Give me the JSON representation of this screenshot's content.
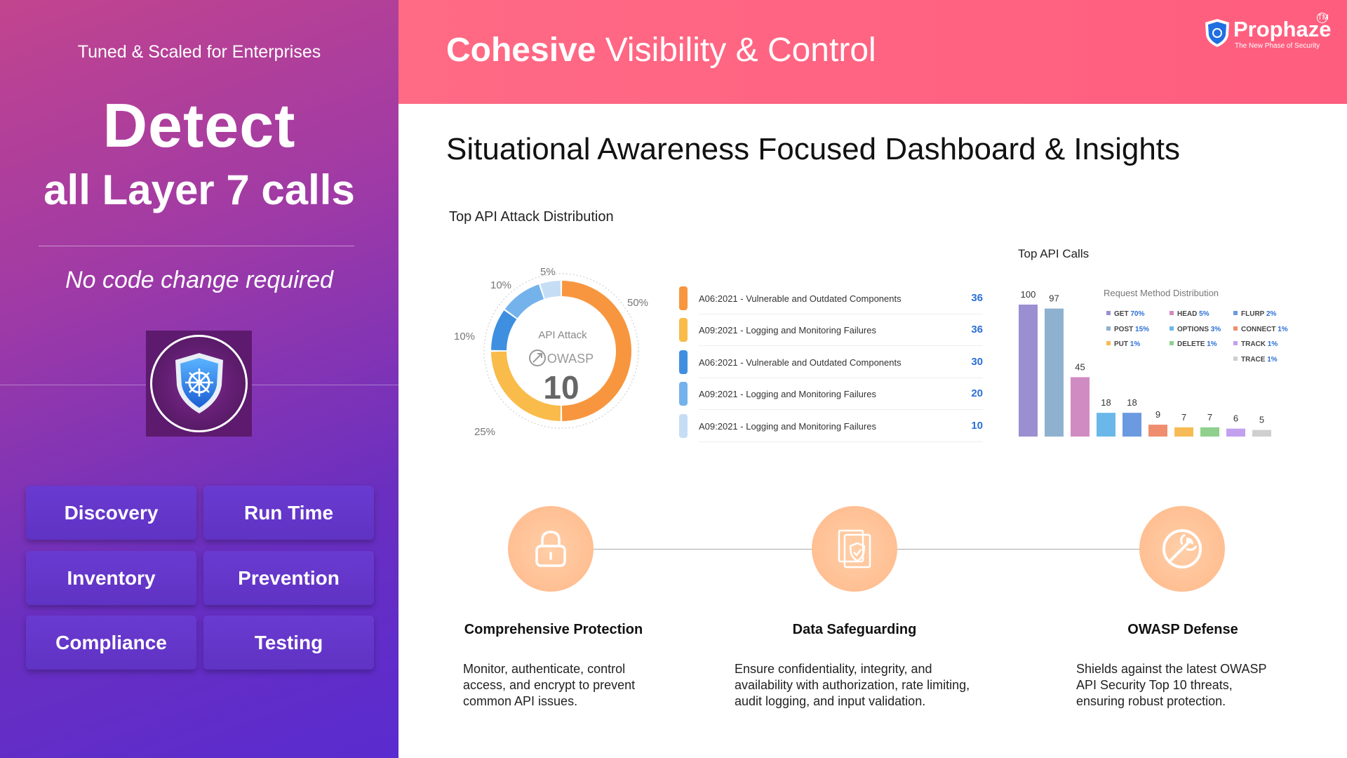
{
  "left": {
    "tagline": "Tuned & Scaled for Enterprises",
    "headline": "Detect",
    "subheadline": "all Layer 7 calls",
    "note": "No code change required",
    "buttons": [
      "Discovery",
      "Run Time",
      "Inventory",
      "Prevention",
      "Compliance",
      "Testing"
    ]
  },
  "header": {
    "title_bold": "Cohesive",
    "title_rest": " Visibility & Control",
    "logo_name": "Prophaze",
    "logo_tm": "TM",
    "logo_sub": "The New Phase of Security"
  },
  "main": {
    "heading": "Situational Awareness Focused Dashboard & Insights",
    "attack_title": "Top API Attack Distribution",
    "calls_title": "Top API Calls"
  },
  "chart_data": [
    {
      "type": "pie",
      "title": "Top API Attack Distribution",
      "center_label": "API Attack",
      "center_logo": "OWASP",
      "center_value": "10",
      "slices": [
        {
          "percent_label": "50%",
          "value": 50,
          "color": "#f7963f"
        },
        {
          "percent_label": "25%",
          "value": 25,
          "color": "#f9bb4a"
        },
        {
          "percent_label": "10%",
          "value": 10,
          "color": "#3f8fe0"
        },
        {
          "percent_label": "10%",
          "value": 10,
          "color": "#74b2ec"
        },
        {
          "percent_label": "5%",
          "value": 5,
          "color": "#c6def5"
        }
      ],
      "legend": [
        {
          "label": "A06:2021 - Vulnerable and Outdated Components",
          "value": 36,
          "color": "#f7963f"
        },
        {
          "label": "A09:2021 - Logging and Monitoring Failures",
          "value": 36,
          "color": "#f9bb4a"
        },
        {
          "label": "A06:2021 - Vulnerable and Outdated Components",
          "value": 30,
          "color": "#3f8fe0"
        },
        {
          "label": "A09:2021 - Logging and Monitoring Failures",
          "value": 20,
          "color": "#74b2ec"
        },
        {
          "label": "A09:2021 - Logging and Monitoring Failures",
          "value": 10,
          "color": "#c6def5"
        }
      ]
    },
    {
      "type": "bar",
      "title": "Top API Calls",
      "values": [
        100,
        97,
        45,
        18,
        18,
        9,
        7,
        7,
        6,
        5
      ],
      "colors": [
        "#9b8fd1",
        "#8eb1cf",
        "#d08bc3",
        "#6ab8ea",
        "#6b9ae0",
        "#ef8e6f",
        "#f6bb55",
        "#8fd08f",
        "#c39ff0",
        "#cfcfcf"
      ],
      "ylim": [
        0,
        100
      ],
      "legend_title": "Request Method Distribution",
      "legend": [
        {
          "method": "GET",
          "percent": "70%",
          "color": "#9b8fd1"
        },
        {
          "method": "HEAD",
          "percent": "5%",
          "color": "#d08bc3"
        },
        {
          "method": "FLURP",
          "percent": "2%",
          "color": "#6b9ae0"
        },
        {
          "method": "POST",
          "percent": "15%",
          "color": "#8eb1cf"
        },
        {
          "method": "OPTIONS",
          "percent": "3%",
          "color": "#6ab8ea"
        },
        {
          "method": "CONNECT",
          "percent": "1%",
          "color": "#ef8e6f"
        },
        {
          "method": "PUT",
          "percent": "1%",
          "color": "#f6bb55"
        },
        {
          "method": "DELETE",
          "percent": "1%",
          "color": "#8fd08f"
        },
        {
          "method": "TRACK",
          "percent": "1%",
          "color": "#c39ff0"
        },
        {
          "method": "TRACE",
          "percent": "1%",
          "color": "#cfcfcf"
        }
      ]
    }
  ],
  "features": [
    {
      "title": "Comprehensive Protection",
      "desc": [
        "Monitor, authenticate, control",
        "access, and encrypt to prevent",
        "common API issues."
      ]
    },
    {
      "title": "Data Safeguarding",
      "desc": [
        "Ensure confidentiality, integrity, and",
        "availability with authorization, rate limiting,",
        "audit logging, and input validation."
      ]
    },
    {
      "title": "OWASP Defense",
      "desc": [
        "Shields against the latest OWASP",
        "API Security Top 10 threats,",
        "ensuring robust protection."
      ]
    }
  ]
}
